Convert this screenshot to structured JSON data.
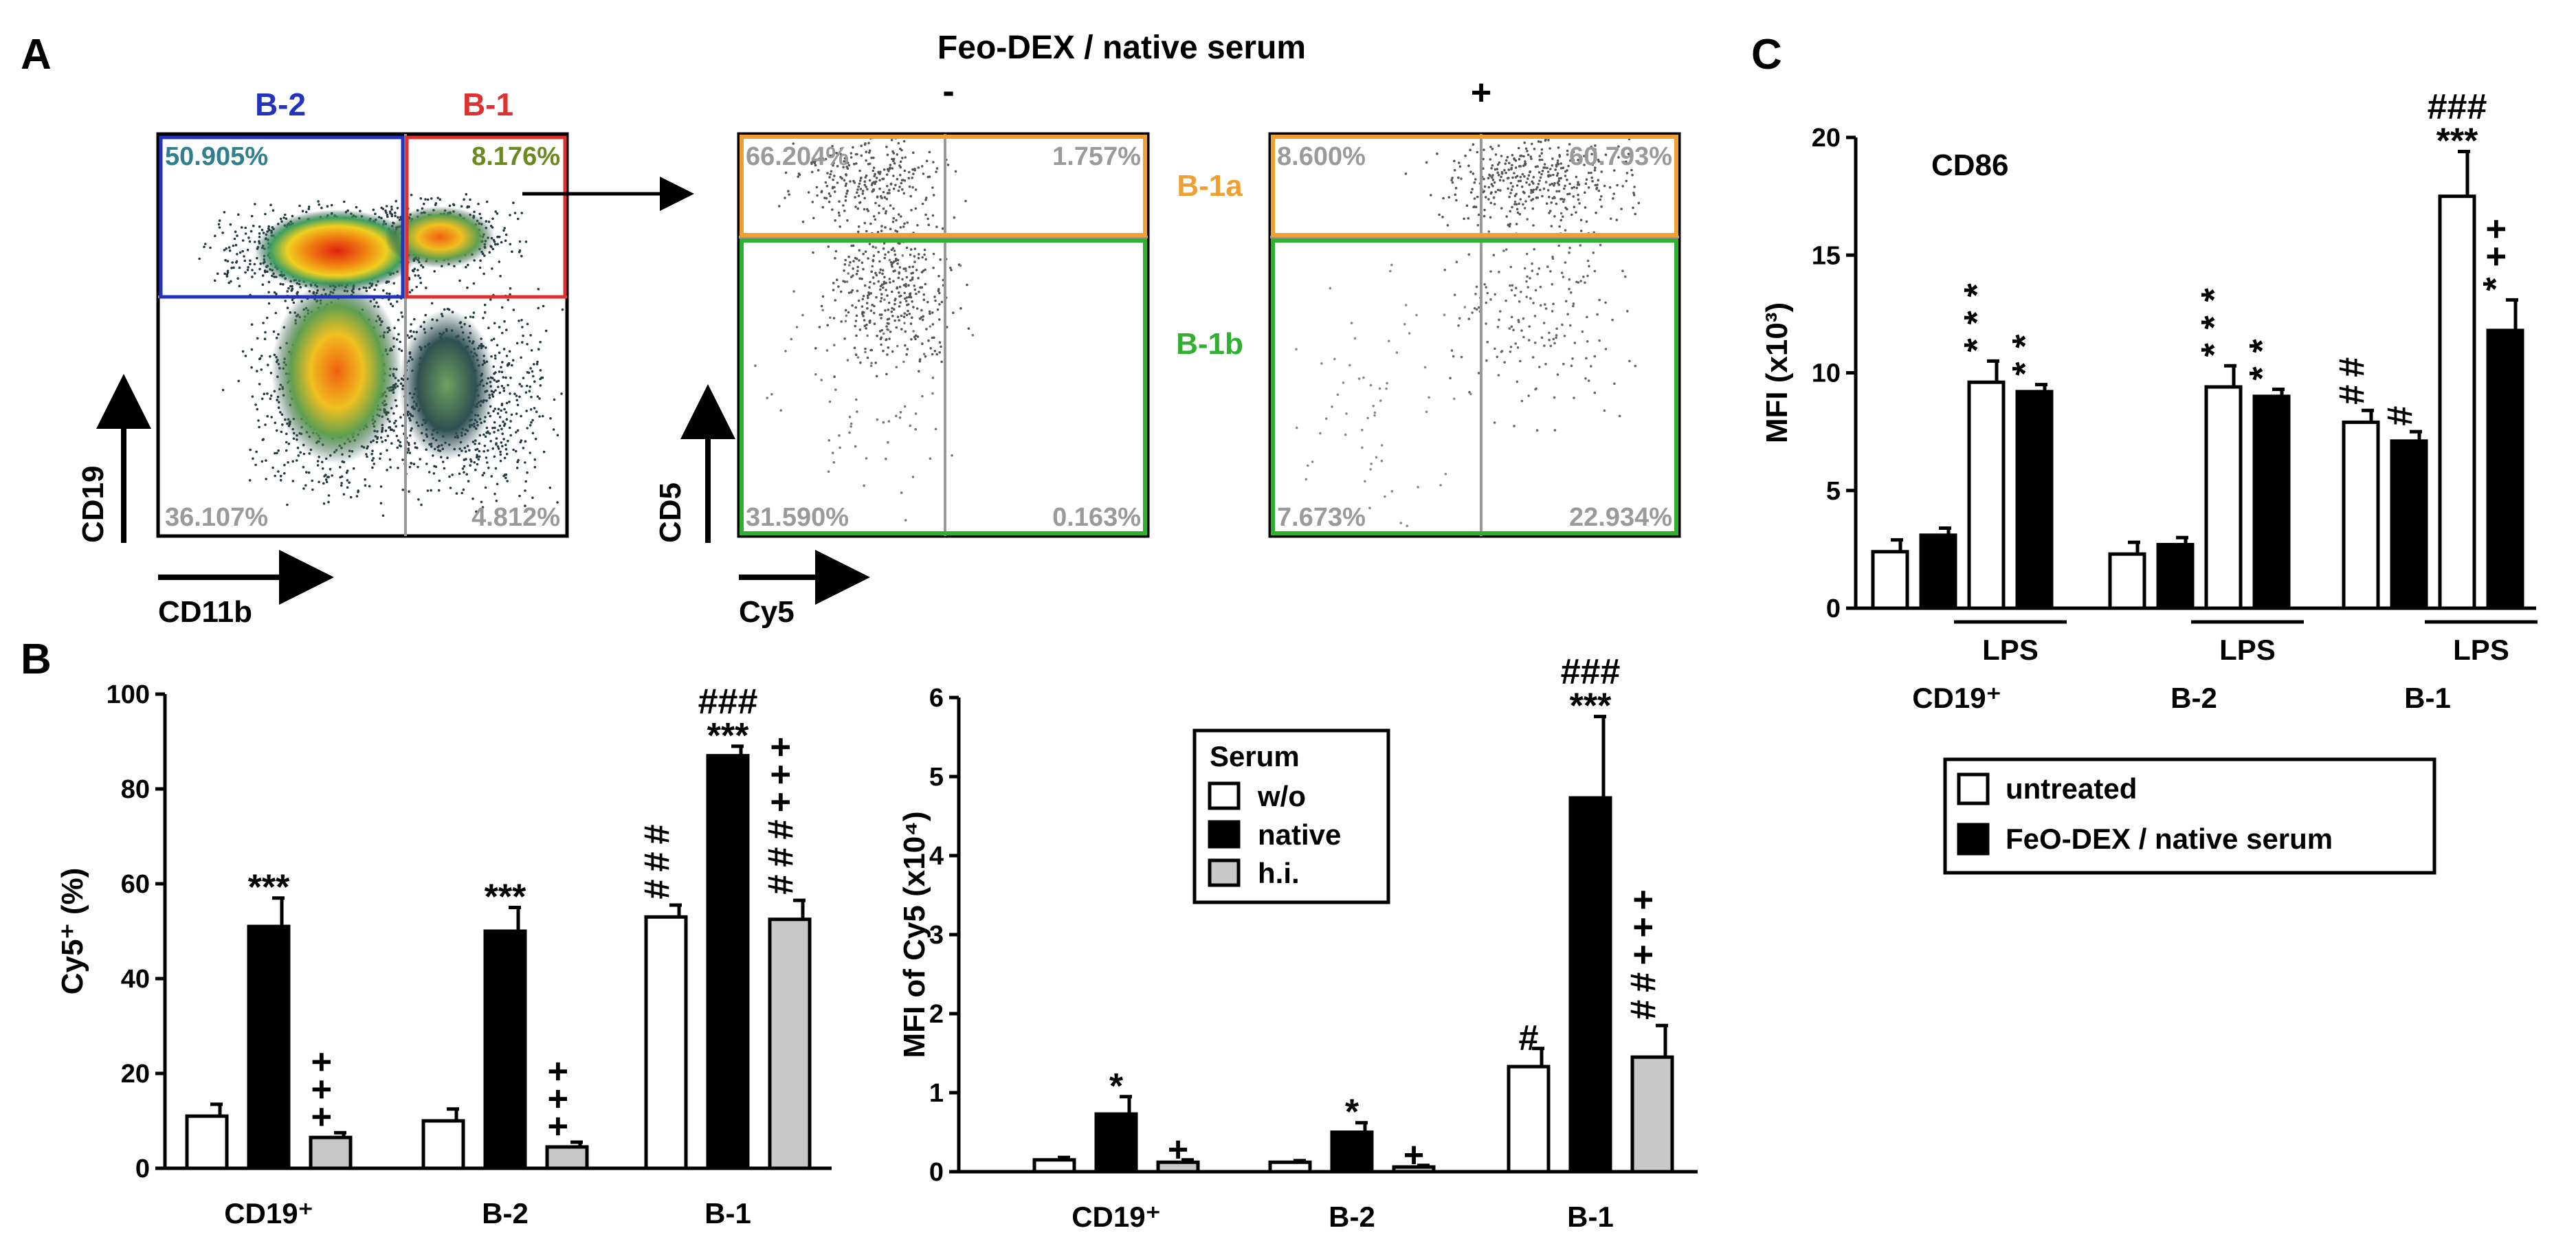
{
  "panel_labels": {
    "a": "A",
    "b": "B",
    "c": "C"
  },
  "flow": {
    "left": {
      "gate_b2_label": "B-2",
      "gate_b1_label": "B-1",
      "tl_pct": "50.905%",
      "tr_pct": "8.176%",
      "bl_pct": "36.107%",
      "br_pct": "4.812%",
      "xlabel": "CD11b",
      "ylabel": "CD19",
      "colors": {
        "b2": "#2233c0",
        "b1": "#e03030",
        "tl_text": "#2f7f8f",
        "tr_text": "#6a8a20"
      }
    },
    "header": "Feo-DEX / native serum",
    "minus": "-",
    "plus": "+",
    "middle": {
      "tl_pct": "66.204%",
      "tr_pct": "1.757%",
      "bl_pct": "31.590%",
      "br_pct": "0.163%",
      "xlabel": "Cy5",
      "ylabel": "CD5"
    },
    "right": {
      "tl_pct": "8.600%",
      "tr_pct": "60.793%",
      "bl_pct": "7.673%",
      "br_pct": "22.934%"
    },
    "b1a_label": "B-1a",
    "b1b_label": "B-1b",
    "gate_colors": {
      "b1a": "#f0a030",
      "b1b": "#30b030"
    }
  },
  "chart_data": [
    {
      "id": "B1",
      "type": "bar",
      "ylabel": "Cy5⁺ (%)",
      "ylim": [
        0,
        100
      ],
      "yticks": [
        "0",
        "20",
        "40",
        "60",
        "80",
        "100"
      ],
      "categories": [
        "CD19⁺",
        "B-2",
        "B-1"
      ],
      "series": [
        {
          "name": "w/o",
          "values": [
            11,
            10,
            53
          ],
          "errors": [
            2.5,
            2.5,
            2.5
          ]
        },
        {
          "name": "native",
          "values": [
            51,
            50,
            87
          ],
          "errors": [
            6,
            5,
            2
          ]
        },
        {
          "name": "h.i.",
          "values": [
            6.5,
            4.5,
            52.5
          ],
          "errors": [
            1,
            1,
            4
          ]
        }
      ],
      "annotations": [
        {
          "cat": 0,
          "ser": 1,
          "lines": [
            "***"
          ]
        },
        {
          "cat": 1,
          "ser": 1,
          "lines": [
            "***"
          ]
        },
        {
          "cat": 2,
          "ser": 1,
          "lines": [
            "###",
            "***"
          ]
        },
        {
          "cat": 0,
          "ser": 2,
          "vertical": "+++"
        },
        {
          "cat": 1,
          "ser": 2,
          "vertical": "+++"
        },
        {
          "cat": 2,
          "ser": 0,
          "vertical": "###"
        },
        {
          "cat": 2,
          "ser": 2,
          "vertical": "+++###"
        }
      ]
    },
    {
      "id": "B2",
      "type": "bar",
      "ylabel": "MFI of Cy5 (x10⁴)",
      "ylim": [
        0,
        6
      ],
      "yticks": [
        "0",
        "1",
        "2",
        "3",
        "4",
        "5",
        "6"
      ],
      "categories": [
        "CD19⁺",
        "B-2",
        "B-1"
      ],
      "legend_title": "Serum",
      "series": [
        {
          "name": "w/o",
          "values": [
            0.15,
            0.12,
            1.33
          ],
          "errors": [
            0.03,
            0.02,
            0.23
          ]
        },
        {
          "name": "native",
          "values": [
            0.73,
            0.5,
            4.73
          ],
          "errors": [
            0.22,
            0.12,
            1.03
          ]
        },
        {
          "name": "h.i.",
          "values": [
            0.12,
            0.06,
            1.45
          ],
          "errors": [
            0.03,
            0.02,
            0.4
          ]
        }
      ],
      "annotations": [
        {
          "cat": 0,
          "ser": 1,
          "lines": [
            "*"
          ]
        },
        {
          "cat": 1,
          "ser": 1,
          "lines": [
            "*"
          ]
        },
        {
          "cat": 2,
          "ser": 1,
          "lines": [
            "###",
            "***"
          ]
        },
        {
          "cat": 0,
          "ser": 2,
          "lines": [
            "+"
          ]
        },
        {
          "cat": 1,
          "ser": 2,
          "lines": [
            "+"
          ]
        },
        {
          "cat": 2,
          "ser": 0,
          "lines": [
            "#"
          ]
        },
        {
          "cat": 2,
          "ser": 2,
          "vertical": "+++##"
        }
      ]
    },
    {
      "id": "C",
      "type": "bar",
      "title": "CD86",
      "ylabel": "MFI (x10³)",
      "ylim": [
        0,
        20
      ],
      "yticks": [
        "0",
        "5",
        "10",
        "15",
        "20"
      ],
      "categories": [
        "CD19⁺",
        "B-2",
        "B-1"
      ],
      "treatment_label": "LPS",
      "bars": [
        {
          "cat": 0,
          "fill": "untreated",
          "lps": false,
          "value": 2.4,
          "error": 0.5
        },
        {
          "cat": 0,
          "fill": "FeO-DEX / native serum",
          "lps": false,
          "value": 3.1,
          "error": 0.3
        },
        {
          "cat": 0,
          "fill": "untreated",
          "lps": true,
          "value": 9.6,
          "error": 0.9
        },
        {
          "cat": 0,
          "fill": "FeO-DEX / native serum",
          "lps": true,
          "value": 9.2,
          "error": 0.3
        },
        {
          "cat": 1,
          "fill": "untreated",
          "lps": false,
          "value": 2.3,
          "error": 0.5
        },
        {
          "cat": 1,
          "fill": "FeO-DEX / native serum",
          "lps": false,
          "value": 2.7,
          "error": 0.3
        },
        {
          "cat": 1,
          "fill": "untreated",
          "lps": true,
          "value": 9.4,
          "error": 0.9
        },
        {
          "cat": 1,
          "fill": "FeO-DEX / native serum",
          "lps": true,
          "value": 9.0,
          "error": 0.3
        },
        {
          "cat": 2,
          "fill": "untreated",
          "lps": false,
          "value": 7.9,
          "error": 0.5
        },
        {
          "cat": 2,
          "fill": "FeO-DEX / native serum",
          "lps": false,
          "value": 7.1,
          "error": 0.4
        },
        {
          "cat": 2,
          "fill": "untreated",
          "lps": true,
          "value": 17.5,
          "error": 1.9
        },
        {
          "cat": 2,
          "fill": "FeO-DEX / native serum",
          "lps": true,
          "value": 11.8,
          "error": 1.3
        }
      ],
      "annotations": [
        {
          "bar": 2,
          "vertical": "***"
        },
        {
          "bar": 3,
          "vertical": "**"
        },
        {
          "bar": 6,
          "vertical": "***"
        },
        {
          "bar": 7,
          "vertical": "**"
        },
        {
          "bar": 8,
          "vertical": "##"
        },
        {
          "bar": 9,
          "vertical": "#"
        },
        {
          "bar": 10,
          "lines": [
            "###",
            "***"
          ]
        },
        {
          "bar": 11,
          "vertical": "++*"
        }
      ],
      "legend": [
        "untreated",
        "FeO-DEX / native serum"
      ]
    }
  ]
}
